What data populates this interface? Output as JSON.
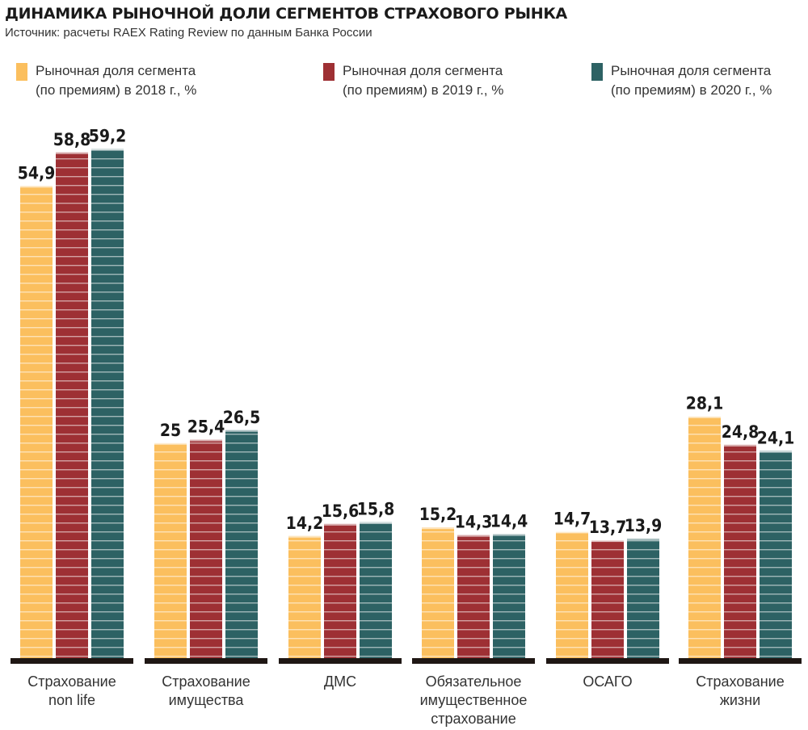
{
  "title": "ДИНАМИКА РЫНОЧНОЙ ДОЛИ СЕГМЕНТОВ СТРАХОВОГО РЫНКА",
  "source": "Источник: расчеты RAEX Rating Review по данным Банка России",
  "legend": [
    {
      "line1": "Рыночная доля сегмента",
      "line2": "(по премиям) в 2018 г., %",
      "color": "#FBBF5E"
    },
    {
      "line1": "Рыночная доля сегмента",
      "line2": "(по премиям) в 2019 г., %",
      "color": "#9E3034"
    },
    {
      "line1": "Рыночная доля сегмента",
      "line2": "(по премиям) в 2020 г., %",
      "color": "#2D6264"
    }
  ],
  "chart_data": {
    "type": "bar",
    "title": "ДИНАМИКА РЫНОЧНОЙ ДОЛИ СЕГМЕНТОВ СТРАХОВОГО РЫНКА",
    "xlabel": "",
    "ylabel": "",
    "ylim": [
      0,
      60
    ],
    "grid": false,
    "legend_position": "top",
    "categories": [
      [
        "Страхование",
        "non life"
      ],
      [
        "Страхование",
        "имущества"
      ],
      [
        "ДМС"
      ],
      [
        "Обязательное",
        "имущественное",
        "страхование"
      ],
      [
        "ОСАГО"
      ],
      [
        "Страхование",
        "жизни"
      ]
    ],
    "series": [
      {
        "name": "Рыночная доля сегмента (по премиям) в 2018 г., %",
        "color": "#FBBF5E",
        "values": [
          54.9,
          25,
          14.2,
          15.2,
          14.7,
          28.1
        ],
        "labels": [
          "54,9",
          "25",
          "14,2",
          "15,2",
          "14,7",
          "28,1"
        ]
      },
      {
        "name": "Рыночная доля сегмента (по премиям) в 2019 г., %",
        "color": "#9E3034",
        "values": [
          58.8,
          25.4,
          15.6,
          14.3,
          13.7,
          24.8
        ],
        "labels": [
          "58,8",
          "25,4",
          "15,6",
          "14,3",
          "13,7",
          "24,8"
        ]
      },
      {
        "name": "Рыночная доля сегмента (по премиям) в 2020 г., %",
        "color": "#2D6264",
        "values": [
          59.2,
          26.5,
          15.8,
          14.4,
          13.9,
          24.1
        ],
        "labels": [
          "59,2",
          "26,5",
          "15,8",
          "14,4",
          "13,9",
          "24,1"
        ]
      }
    ]
  }
}
